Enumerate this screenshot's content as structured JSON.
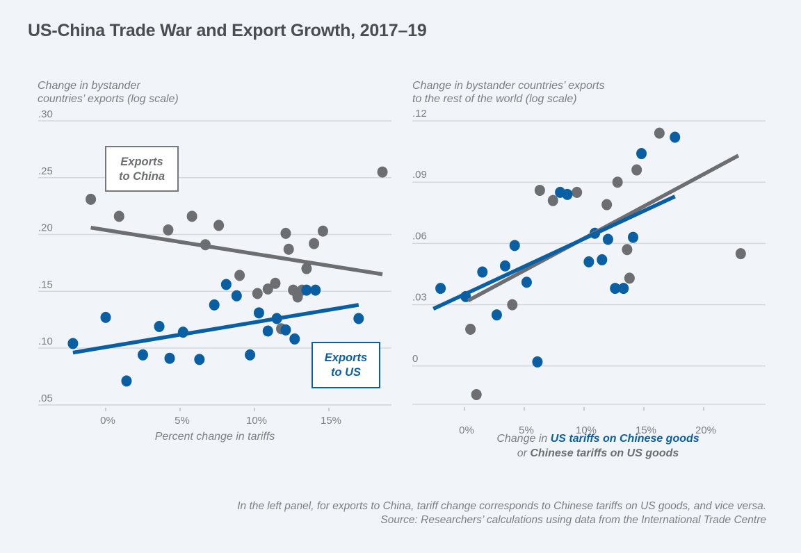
{
  "title": "US-China Trade War and Export Growth, 2017–19",
  "colors": {
    "us": "#0a5fa3",
    "china": "#6d6e71",
    "grid": "#d6d9dc"
  },
  "chart_data": [
    {
      "type": "scatter",
      "panel": "left",
      "ylabel_lines": [
        "Change in bystander",
        "countries’ exports (log scale)"
      ],
      "xlabel": "Percent change in tariffs",
      "xlim": [
        -2.5,
        19.5
      ],
      "ylim": [
        0.05,
        0.3
      ],
      "xticks": [
        0,
        5,
        10,
        15
      ],
      "xtick_labels": [
        "0%",
        "5%",
        "10%",
        "15%"
      ],
      "yticks": [
        0.3,
        0.25,
        0.2,
        0.15,
        0.1,
        0.05
      ],
      "ytick_labels": [
        ".30",
        ".25",
        ".20",
        ".15",
        ".10",
        ".05"
      ],
      "grid": true,
      "annotations": [
        {
          "series": "china",
          "lines": [
            "Exports",
            "to China"
          ]
        },
        {
          "series": "us",
          "lines": [
            "Exports",
            "to US"
          ]
        }
      ],
      "series": [
        {
          "name": "Exports to China",
          "key": "china",
          "points": [
            [
              -1.0,
              0.231
            ],
            [
              0.9,
              0.216
            ],
            [
              4.2,
              0.204
            ],
            [
              5.8,
              0.216
            ],
            [
              6.7,
              0.191
            ],
            [
              7.6,
              0.208
            ],
            [
              9.0,
              0.164
            ],
            [
              10.2,
              0.148
            ],
            [
              10.9,
              0.152
            ],
            [
              11.4,
              0.157
            ],
            [
              12.1,
              0.201
            ],
            [
              12.3,
              0.187
            ],
            [
              12.6,
              0.151
            ],
            [
              12.9,
              0.145
            ],
            [
              13.2,
              0.151
            ],
            [
              13.5,
              0.17
            ],
            [
              14.0,
              0.192
            ],
            [
              14.6,
              0.203
            ],
            [
              11.8,
              0.117
            ],
            [
              18.6,
              0.255
            ]
          ],
          "trend": [
            [
              -1.0,
              0.206
            ],
            [
              18.6,
              0.165
            ]
          ]
        },
        {
          "name": "Exports to US",
          "key": "us",
          "points": [
            [
              -2.2,
              0.104
            ],
            [
              0.0,
              0.127
            ],
            [
              1.4,
              0.071
            ],
            [
              2.5,
              0.094
            ],
            [
              3.6,
              0.119
            ],
            [
              4.3,
              0.091
            ],
            [
              5.2,
              0.114
            ],
            [
              6.3,
              0.09
            ],
            [
              7.3,
              0.138
            ],
            [
              8.1,
              0.156
            ],
            [
              8.8,
              0.146
            ],
            [
              9.7,
              0.094
            ],
            [
              10.3,
              0.131
            ],
            [
              10.9,
              0.115
            ],
            [
              11.5,
              0.126
            ],
            [
              12.1,
              0.116
            ],
            [
              12.7,
              0.108
            ],
            [
              13.5,
              0.151
            ],
            [
              14.1,
              0.151
            ],
            [
              17.0,
              0.126
            ]
          ],
          "trend": [
            [
              -2.2,
              0.096
            ],
            [
              17.0,
              0.138
            ]
          ]
        }
      ]
    },
    {
      "type": "scatter",
      "panel": "right",
      "ylabel_lines": [
        "Change in bystander countries’ exports",
        "to the rest of the world (log scale)"
      ],
      "xlabel_parts": [
        "Change in ",
        "US tariffs on Chinese goods",
        "or ",
        "Chinese tariffs on US goods"
      ],
      "xlim": [
        -3.0,
        24.5
      ],
      "ylim": [
        -0.019,
        0.12
      ],
      "xticks": [
        0,
        5,
        10,
        15,
        20
      ],
      "xtick_labels": [
        "0%",
        "5%",
        "10%",
        "15%",
        "20%"
      ],
      "yticks": [
        0.12,
        0.09,
        0.06,
        0.03,
        0
      ],
      "ytick_labels": [
        ".12",
        ".09",
        ".06",
        ".03",
        "0"
      ],
      "grid": true,
      "series": [
        {
          "name": "Chinese tariffs on US goods",
          "key": "china",
          "points": [
            [
              0.5,
              0.018
            ],
            [
              1.0,
              -0.014
            ],
            [
              4.0,
              0.03
            ],
            [
              6.3,
              0.086
            ],
            [
              7.4,
              0.081
            ],
            [
              9.4,
              0.085
            ],
            [
              11.9,
              0.079
            ],
            [
              12.8,
              0.09
            ],
            [
              14.4,
              0.096
            ],
            [
              13.6,
              0.057
            ],
            [
              13.8,
              0.043
            ],
            [
              16.3,
              0.114
            ],
            [
              23.1,
              0.055
            ]
          ],
          "trend": [
            [
              0.3,
              0.032
            ],
            [
              22.9,
              0.103
            ]
          ]
        },
        {
          "name": "US tariffs on Chinese goods",
          "key": "us",
          "points": [
            [
              -2.0,
              0.038
            ],
            [
              0.1,
              0.034
            ],
            [
              1.5,
              0.046
            ],
            [
              2.7,
              0.025
            ],
            [
              3.4,
              0.049
            ],
            [
              4.2,
              0.059
            ],
            [
              5.2,
              0.041
            ],
            [
              6.1,
              0.002
            ],
            [
              8.0,
              0.085
            ],
            [
              8.6,
              0.084
            ],
            [
              10.4,
              0.051
            ],
            [
              10.9,
              0.065
            ],
            [
              11.5,
              0.052
            ],
            [
              12.0,
              0.062
            ],
            [
              12.6,
              0.038
            ],
            [
              13.3,
              0.038
            ],
            [
              14.1,
              0.063
            ],
            [
              14.8,
              0.104
            ],
            [
              17.6,
              0.112
            ]
          ],
          "trend": [
            [
              -2.6,
              0.028
            ],
            [
              17.6,
              0.083
            ]
          ]
        }
      ]
    }
  ],
  "notes": [
    "In the left panel, for exports to China, tariff change corresponds to Chinese tariffs on US goods, and vice versa.",
    "Source: Researchers’ calculations using data from the International Trade Centre"
  ]
}
